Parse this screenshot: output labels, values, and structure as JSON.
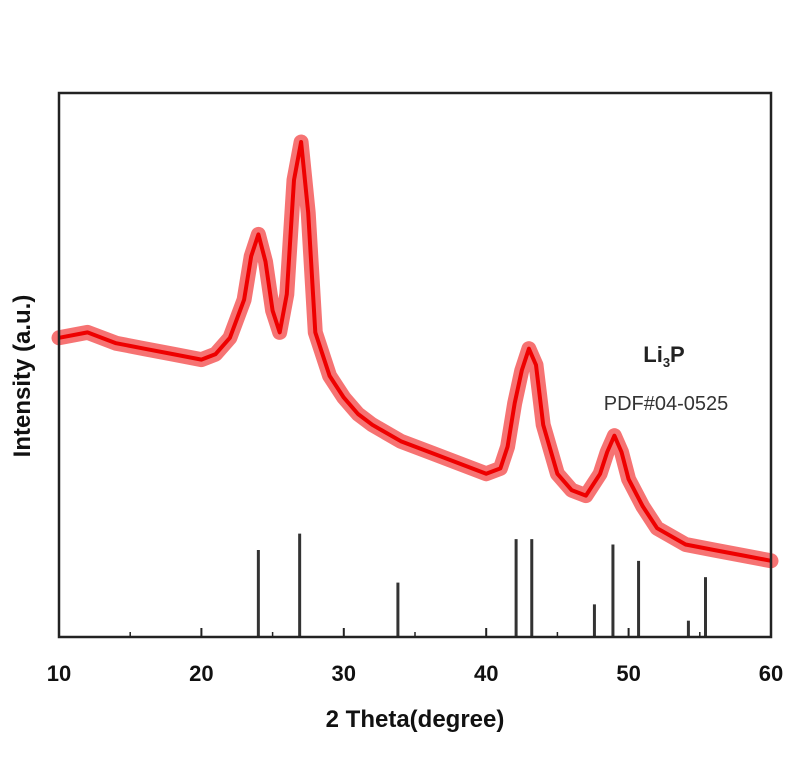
{
  "chart_data": {
    "type": "line",
    "title": "",
    "xlabel": "2 Theta(degree)",
    "ylabel": "Intensity (a.u.)",
    "xlim": [
      10,
      60
    ],
    "xticks": [
      10,
      20,
      30,
      40,
      50,
      60
    ],
    "ylim": [
      0,
      100
    ],
    "y_ticks_labeled": false,
    "grid": false,
    "series": [
      {
        "color": "#ee0000",
        "x": [
          10,
          12,
          14,
          16,
          18,
          20,
          21,
          22,
          23,
          23.5,
          24,
          24.5,
          25,
          25.5,
          26,
          26.5,
          27,
          27.5,
          28,
          29,
          30,
          31,
          32,
          34,
          36,
          38,
          40,
          41,
          41.5,
          42,
          42.5,
          43,
          43.5,
          44,
          45,
          46,
          47,
          48,
          48.5,
          49,
          49.5,
          50,
          51,
          52,
          54,
          56,
          58,
          60
        ],
        "y": [
          55,
          56,
          54,
          53,
          52,
          51,
          52,
          55,
          62,
          70,
          74,
          69,
          60,
          56,
          63,
          84,
          91,
          78,
          56,
          48,
          44,
          41,
          39,
          36,
          34,
          32,
          30,
          31,
          35,
          43,
          49,
          53,
          50,
          39,
          30,
          27,
          26,
          30,
          34,
          37,
          34,
          29,
          24,
          20,
          17,
          16,
          15,
          14
        ]
      }
    ],
    "reference": {
      "formula_main": "Li",
      "formula_sub": "3",
      "formula_end": "P",
      "label": "PDF#04-0525",
      "color": "#333333",
      "sticks": [
        {
          "x": 24.0,
          "h": 16
        },
        {
          "x": 26.9,
          "h": 19
        },
        {
          "x": 33.8,
          "h": 10
        },
        {
          "x": 42.1,
          "h": 18
        },
        {
          "x": 43.2,
          "h": 18
        },
        {
          "x": 47.6,
          "h": 6
        },
        {
          "x": 48.9,
          "h": 17
        },
        {
          "x": 50.7,
          "h": 14
        },
        {
          "x": 54.2,
          "h": 3
        },
        {
          "x": 55.4,
          "h": 11
        }
      ]
    }
  }
}
